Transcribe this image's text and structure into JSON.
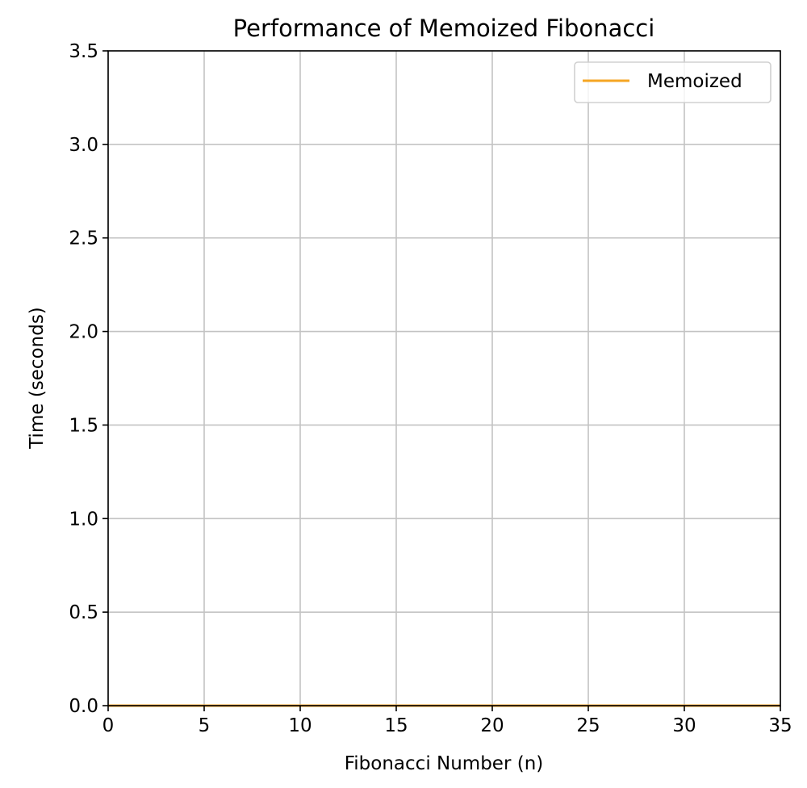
{
  "chart_data": {
    "type": "line",
    "title": "Performance of Memoized Fibonacci",
    "xlabel": "Fibonacci Number (n)",
    "ylabel": "Time (seconds)",
    "xlim": [
      0,
      35
    ],
    "ylim": [
      0,
      3.5
    ],
    "x_ticks": [
      0,
      5,
      10,
      15,
      20,
      25,
      30,
      35
    ],
    "x_tick_labels": [
      "0",
      "5",
      "10",
      "15",
      "20",
      "25",
      "30",
      "35"
    ],
    "y_ticks": [
      0,
      0.5,
      1.0,
      1.5,
      2.0,
      2.5,
      3.0,
      3.5
    ],
    "y_tick_labels": [
      "0.0",
      "0.5",
      "1.0",
      "1.5",
      "2.0",
      "2.5",
      "3.0",
      "3.5"
    ],
    "grid": true,
    "legend_position": "top-right",
    "series": [
      {
        "name": "Memoized",
        "color": "#f5a623",
        "x": [
          0,
          5,
          10,
          15,
          20,
          25,
          30,
          35
        ],
        "y": [
          0,
          0,
          0,
          0,
          0,
          0,
          0,
          0
        ]
      }
    ]
  }
}
